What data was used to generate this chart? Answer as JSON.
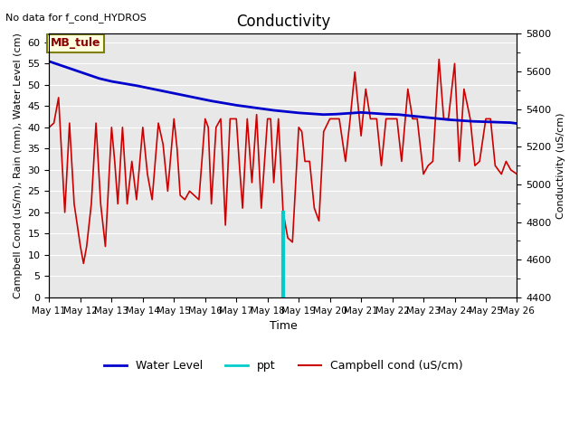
{
  "title": "Conductivity",
  "subtitle": "No data for f_cond_HYDROS",
  "xlabel": "Time",
  "ylabel_left": "Campbell Cond (uS/m), Rain (mm), Water Level (cm)",
  "ylabel_right": "Conductivity (uS/cm)",
  "ylim_left": [
    0,
    62
  ],
  "ylim_right": [
    4400,
    5800
  ],
  "yticks_left": [
    0,
    5,
    10,
    15,
    20,
    25,
    30,
    35,
    40,
    45,
    50,
    55,
    60
  ],
  "yticks_right": [
    4400,
    4600,
    4800,
    5000,
    5200,
    5400,
    5600,
    5800
  ],
  "xtick_positions": [
    1,
    2,
    3,
    4,
    5,
    6,
    7,
    8,
    9,
    10,
    11,
    12,
    13,
    14,
    15,
    16
  ],
  "xtick_labels": [
    "May 11",
    "May 12",
    "May 13",
    "May 14",
    "May 15",
    "May 16",
    "May 17",
    "May 18",
    "May 19",
    "May 20",
    "May 21",
    "May 22",
    "May 23",
    "May 24",
    "May 25",
    "May 26"
  ],
  "annotation_box": "MB_tule",
  "background_color": "#e8e8e8",
  "water_level_color": "#0000cc",
  "ppt_color": "#00cccc",
  "campbell_cond_color": "#cc0000",
  "water_level_data_x": [
    1,
    1.4,
    1.8,
    2.2,
    2.6,
    3.0,
    3.4,
    3.8,
    4.2,
    4.6,
    5.0,
    5.4,
    5.8,
    6.2,
    6.6,
    7.0,
    7.4,
    7.8,
    8.2,
    8.6,
    9.0,
    9.4,
    9.8,
    10.2,
    10.6,
    11.0,
    11.4,
    11.8,
    12.2,
    12.6,
    13.0,
    13.4,
    13.8,
    14.2,
    14.6,
    15.0,
    15.4,
    15.8,
    16.0
  ],
  "water_level_data_y": [
    55.5,
    54.5,
    53.5,
    52.5,
    51.5,
    50.8,
    50.3,
    49.8,
    49.2,
    48.6,
    48.0,
    47.4,
    46.8,
    46.2,
    45.7,
    45.2,
    44.8,
    44.4,
    44.0,
    43.7,
    43.4,
    43.2,
    43.0,
    43.1,
    43.3,
    43.5,
    43.3,
    43.1,
    43.0,
    42.7,
    42.4,
    42.1,
    41.8,
    41.6,
    41.4,
    41.3,
    41.2,
    41.1,
    40.9
  ],
  "ppt_x": 8.5,
  "ppt_y": 20.0,
  "campbell_x": [
    1.0,
    1.15,
    1.3,
    1.5,
    1.65,
    1.8,
    2.0,
    2.1,
    2.2,
    2.35,
    2.5,
    2.65,
    2.8,
    3.0,
    3.1,
    3.2,
    3.35,
    3.5,
    3.65,
    3.8,
    4.0,
    4.15,
    4.3,
    4.5,
    4.65,
    4.8,
    5.0,
    5.1,
    5.2,
    5.35,
    5.5,
    5.65,
    5.8,
    6.0,
    6.1,
    6.2,
    6.35,
    6.5,
    6.65,
    6.8,
    7.0,
    7.1,
    7.2,
    7.35,
    7.5,
    7.65,
    7.8,
    8.0,
    8.1,
    8.2,
    8.35,
    8.5,
    8.65,
    8.8,
    9.0,
    9.1,
    9.2,
    9.35,
    9.5,
    9.65,
    9.8,
    10.0,
    10.15,
    10.3,
    10.5,
    10.65,
    10.8,
    11.0,
    11.15,
    11.3,
    11.5,
    11.65,
    11.8,
    12.0,
    12.15,
    12.3,
    12.5,
    12.65,
    12.8,
    13.0,
    13.15,
    13.3,
    13.5,
    13.65,
    13.8,
    14.0,
    14.15,
    14.3,
    14.5,
    14.65,
    14.8,
    15.0,
    15.15,
    15.3,
    15.5,
    15.65,
    15.8,
    16.0
  ],
  "campbell_y": [
    40,
    41,
    47,
    20,
    41,
    22,
    12,
    8,
    12,
    22,
    41,
    22,
    12,
    40,
    32,
    22,
    40,
    22,
    32,
    23,
    40,
    29,
    23,
    41,
    36,
    25,
    42,
    35,
    24,
    23,
    25,
    24,
    23,
    42,
    40,
    22,
    40,
    42,
    17,
    42,
    42,
    31,
    21,
    42,
    27,
    43,
    21,
    42,
    42,
    27,
    42,
    20,
    14,
    13,
    40,
    39,
    32,
    32,
    21,
    18,
    39,
    42,
    42,
    42,
    32,
    42,
    53,
    38,
    49,
    42,
    42,
    31,
    42,
    42,
    42,
    32,
    49,
    42,
    42,
    29,
    31,
    32,
    56,
    42,
    42,
    55,
    32,
    49,
    42,
    31,
    32,
    42,
    42,
    31,
    29,
    32,
    30,
    29
  ]
}
